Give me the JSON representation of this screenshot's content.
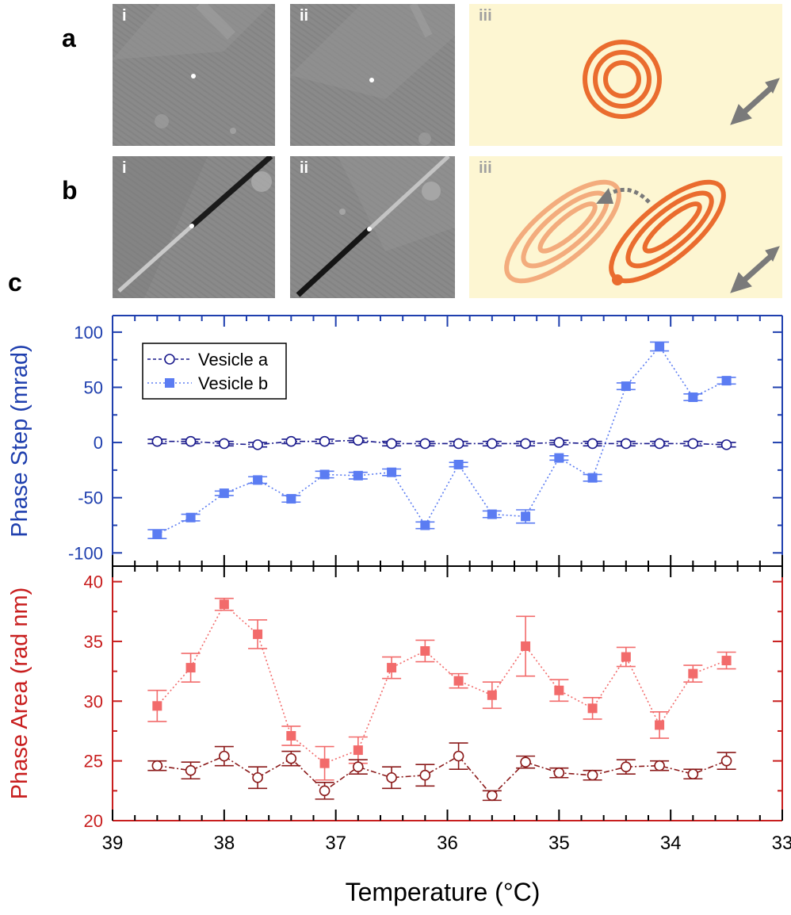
{
  "panel_labels": {
    "a": "a",
    "b": "b",
    "c": "c"
  },
  "tile_labels": {
    "i": "i",
    "ii": "ii",
    "iii": "iii"
  },
  "colors": {
    "vesicle_a": "#1a1a8c",
    "vesicle_b": "#5b7cf2",
    "area_a": "#8b1a1a",
    "area_b": "#f26b6b",
    "axis_top": "#1f3fae",
    "axis_bottom": "#c81e1e",
    "sketch_bg": "#fdf6d2",
    "sketch_orange": "#ea6c2e",
    "sketch_orange_light": "#f3ac7d"
  },
  "chart_data": [
    {
      "type": "line",
      "name": "phase-step",
      "ylabel": "Phase Step (mrad)",
      "xlabel": "Temperature (°C)",
      "xlim": [
        39,
        33
      ],
      "ylim": [
        -112,
        115
      ],
      "yticks": [
        "-100",
        "-50",
        "0",
        "50",
        "100"
      ],
      "yticks_values": [
        -100,
        -50,
        0,
        50,
        100
      ],
      "legend": {
        "placement": "top-left",
        "entries": [
          "Vesicle a",
          "Vesicle b"
        ]
      },
      "x": [
        38.6,
        38.3,
        38.0,
        37.7,
        37.4,
        37.1,
        36.8,
        36.5,
        36.2,
        35.9,
        35.6,
        35.3,
        35.0,
        34.7,
        34.4,
        34.1,
        33.8,
        33.5
      ],
      "series": [
        {
          "name": "Vesicle a",
          "values": [
            1,
            1,
            -1,
            -2,
            1,
            1,
            2,
            -1,
            -1,
            -1,
            -1,
            -1,
            0,
            -1,
            -1,
            -1,
            -1,
            -2
          ],
          "errors": [
            2,
            2,
            2,
            2,
            2,
            2,
            2,
            2,
            2,
            2,
            2,
            2,
            2,
            2,
            2,
            2,
            2,
            2
          ]
        },
        {
          "name": "Vesicle b",
          "values": [
            -83,
            -68,
            -46,
            -34,
            -51,
            -29,
            -30,
            -27,
            -75,
            -20,
            -65,
            -67,
            -14,
            -32,
            51,
            87,
            41,
            56
          ],
          "errors": [
            4,
            3,
            2,
            3,
            3,
            3,
            3,
            3,
            3,
            2,
            3,
            6,
            2,
            3,
            3,
            4,
            3,
            3
          ]
        }
      ]
    },
    {
      "type": "line",
      "name": "phase-area",
      "ylabel": "Phase Area (rad nm)",
      "xlabel": "Temperature (°C)",
      "xlim": [
        39,
        33
      ],
      "ylim": [
        20,
        41.3
      ],
      "yticks": [
        "20",
        "25",
        "30",
        "35",
        "40"
      ],
      "yticks_values": [
        20,
        25,
        30,
        35,
        40
      ],
      "xticks": [
        "39",
        "38",
        "37",
        "36",
        "35",
        "34",
        "33"
      ],
      "xticks_values": [
        39,
        38,
        37,
        36,
        35,
        34,
        33
      ],
      "x": [
        38.6,
        38.3,
        38.0,
        37.7,
        37.4,
        37.1,
        36.8,
        36.5,
        36.2,
        35.9,
        35.6,
        35.3,
        35.0,
        34.7,
        34.4,
        34.1,
        33.8,
        33.5
      ],
      "series": [
        {
          "name": "Vesicle a",
          "values": [
            24.6,
            24.2,
            25.4,
            23.6,
            25.2,
            22.5,
            24.5,
            23.6,
            23.8,
            25.4,
            22.1,
            24.9,
            24.0,
            23.8,
            24.5,
            24.6,
            23.9,
            25.0
          ],
          "errors": [
            0.4,
            0.7,
            0.8,
            0.9,
            0.6,
            0.7,
            0.6,
            0.9,
            0.9,
            1.1,
            0.4,
            0.5,
            0.4,
            0.4,
            0.6,
            0.4,
            0.4,
            0.7
          ]
        },
        {
          "name": "Vesicle b",
          "values": [
            29.6,
            32.8,
            38.1,
            35.6,
            27.1,
            24.8,
            25.9,
            32.8,
            34.2,
            31.7,
            30.5,
            34.6,
            30.9,
            29.4,
            33.7,
            28.0,
            32.3,
            33.4
          ],
          "errors": [
            1.3,
            1.2,
            0.5,
            1.2,
            0.8,
            1.4,
            1.1,
            0.9,
            0.9,
            0.6,
            1.1,
            2.5,
            0.9,
            0.9,
            0.8,
            1.1,
            0.7,
            0.7
          ]
        }
      ]
    }
  ]
}
